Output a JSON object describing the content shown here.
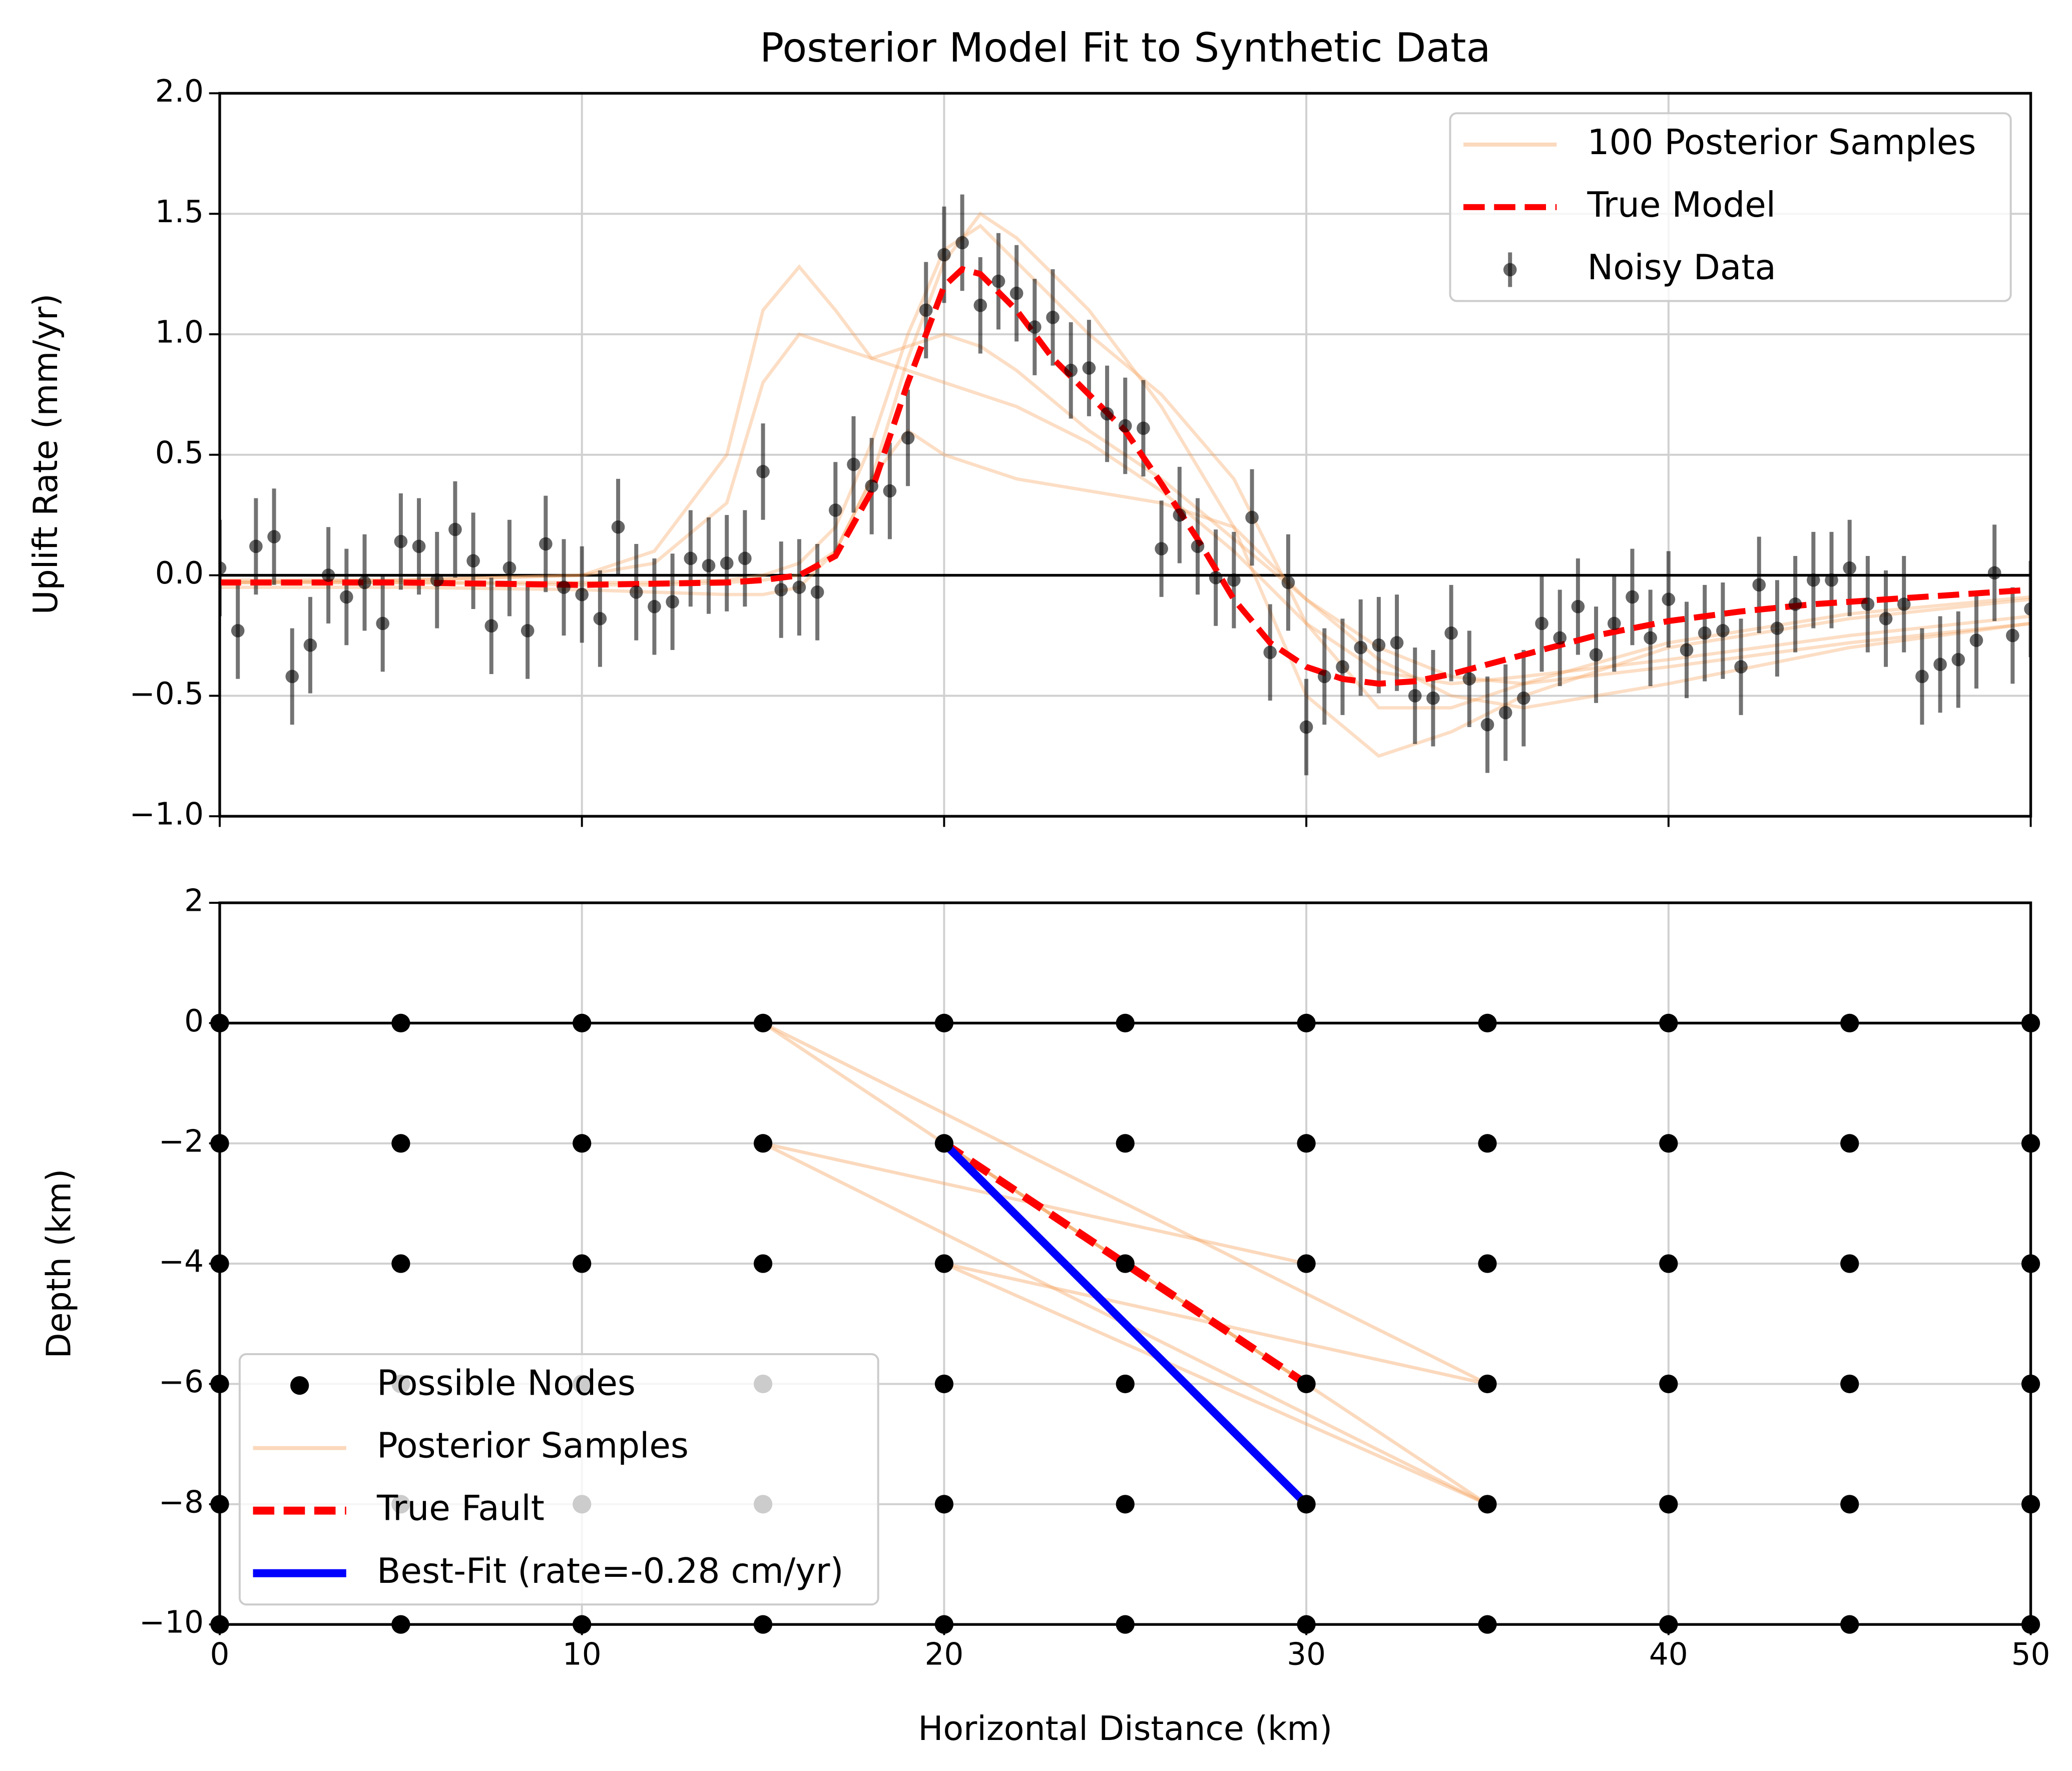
{
  "chart_data": [
    {
      "type": "line",
      "title": "Posterior Model Fit to Synthetic Data",
      "ylabel": "Uplift Rate (mm/yr)",
      "xlim": [
        0,
        50
      ],
      "ylim": [
        -1,
        2
      ],
      "xticks": [
        0,
        10,
        20,
        30,
        40,
        50
      ],
      "show_xtick_labels": false,
      "yticks": [
        {
          "value": -1,
          "label": "−1.0"
        },
        {
          "value": -0.5,
          "label": "−0.5"
        },
        {
          "value": 0,
          "label": "0.0"
        },
        0.5,
        {
          "value": 1,
          "label": "1.0"
        },
        1.5,
        {
          "value": 2,
          "label": "2.0"
        }
      ],
      "grid": true,
      "legend": "upper right",
      "posterior_samples": {
        "name": "100 Posterior Samples",
        "color": "#f5a05a",
        "x": [
          0,
          5,
          10,
          12,
          14,
          15,
          16,
          17,
          18,
          19,
          20,
          21,
          22,
          24,
          26,
          28,
          30,
          32,
          34,
          36,
          40,
          45,
          50
        ],
        "curves": [
          [
            -0.03,
            -0.02,
            0.0,
            0.1,
            0.5,
            1.1,
            1.28,
            1.1,
            0.9,
            0.85,
            0.8,
            0.75,
            0.7,
            0.55,
            0.35,
            0.1,
            -0.2,
            -0.4,
            -0.45,
            -0.42,
            -0.35,
            -0.25,
            -0.17
          ],
          [
            -0.03,
            -0.03,
            -0.04,
            -0.04,
            -0.03,
            -0.02,
            0.0,
            0.1,
            0.4,
            0.9,
            1.3,
            1.5,
            1.4,
            1.1,
            0.7,
            0.2,
            -0.5,
            -0.75,
            -0.65,
            -0.5,
            -0.3,
            -0.18,
            -0.1
          ],
          [
            -0.02,
            -0.02,
            0.0,
            0.05,
            0.3,
            0.8,
            1.0,
            0.95,
            0.9,
            0.95,
            1.0,
            0.95,
            0.85,
            0.6,
            0.4,
            0.15,
            -0.1,
            -0.3,
            -0.42,
            -0.45,
            -0.38,
            -0.28,
            -0.2
          ],
          [
            -0.05,
            -0.05,
            -0.06,
            -0.07,
            -0.08,
            -0.08,
            -0.05,
            0.1,
            0.4,
            0.6,
            0.5,
            0.45,
            0.4,
            0.35,
            0.3,
            0.2,
            -0.1,
            -0.35,
            -0.5,
            -0.55,
            -0.45,
            -0.3,
            -0.2
          ],
          [
            -0.03,
            -0.03,
            -0.03,
            -0.03,
            -0.02,
            0.0,
            0.05,
            0.2,
            0.55,
            1.0,
            1.35,
            1.45,
            1.3,
            1.0,
            0.75,
            0.4,
            -0.2,
            -0.55,
            -0.55,
            -0.45,
            -0.28,
            -0.16,
            -0.09
          ]
        ]
      },
      "true_model": {
        "name": "True Model",
        "color": "#ff0000",
        "x": [
          0,
          5,
          10,
          14,
          15,
          16,
          17,
          18,
          19,
          20,
          20.5,
          21,
          22,
          23,
          24,
          25,
          26,
          27,
          28,
          29,
          30,
          31,
          32,
          33,
          34,
          35,
          36,
          37,
          38,
          39,
          40,
          42,
          44,
          46,
          48,
          50
        ],
        "values": [
          -0.03,
          -0.03,
          -0.04,
          -0.03,
          -0.02,
          0.0,
          0.08,
          0.35,
          0.8,
          1.2,
          1.27,
          1.25,
          1.1,
          0.9,
          0.75,
          0.6,
          0.38,
          0.15,
          -0.1,
          -0.28,
          -0.38,
          -0.43,
          -0.45,
          -0.44,
          -0.41,
          -0.37,
          -0.33,
          -0.29,
          -0.25,
          -0.22,
          -0.19,
          -0.15,
          -0.12,
          -0.1,
          -0.08,
          -0.06
        ]
      },
      "data": {
        "name": "Noisy Data",
        "color": "#000000",
        "error": 0.2,
        "x": [
          0,
          0.5,
          1,
          1.5,
          2,
          2.5,
          3,
          3.5,
          4,
          4.5,
          5,
          5.5,
          6,
          6.5,
          7,
          7.5,
          8,
          8.5,
          9,
          9.5,
          10,
          10.5,
          11,
          11.5,
          12,
          12.5,
          13,
          13.5,
          14,
          14.5,
          15,
          15.5,
          16,
          16.5,
          17,
          17.5,
          18,
          18.5,
          19,
          19.5,
          20,
          20.5,
          21,
          21.5,
          22,
          22.5,
          23,
          23.5,
          24,
          24.5,
          25,
          25.5,
          26,
          26.5,
          27,
          27.5,
          28,
          28.5,
          29,
          29.5,
          30,
          30.5,
          31,
          31.5,
          32,
          32.5,
          33,
          33.5,
          34,
          34.5,
          35,
          35.5,
          36,
          36.5,
          37,
          37.5,
          38,
          38.5,
          39,
          39.5,
          40,
          40.5,
          41,
          41.5,
          42,
          42.5,
          43,
          43.5,
          44,
          44.5,
          45,
          45.5,
          46,
          46.5,
          47,
          47.5,
          48,
          48.5,
          49,
          49.5,
          50
        ],
        "values": [
          0.03,
          -0.23,
          0.12,
          0.16,
          -0.42,
          -0.29,
          0.0,
          -0.09,
          -0.03,
          -0.2,
          0.14,
          0.12,
          -0.02,
          0.19,
          0.06,
          -0.21,
          0.03,
          -0.23,
          0.13,
          -0.05,
          -0.08,
          -0.18,
          0.2,
          -0.07,
          -0.13,
          -0.11,
          0.07,
          0.04,
          0.05,
          0.07,
          0.43,
          -0.06,
          -0.05,
          -0.07,
          0.27,
          0.46,
          0.37,
          0.35,
          0.57,
          1.1,
          1.33,
          1.38,
          1.12,
          1.22,
          1.17,
          1.03,
          1.07,
          0.85,
          0.86,
          0.67,
          0.62,
          0.61,
          0.11,
          0.25,
          0.12,
          -0.01,
          -0.02,
          0.24,
          -0.32,
          -0.03,
          -0.63,
          -0.42,
          -0.38,
          -0.3,
          -0.29,
          -0.28,
          -0.5,
          -0.51,
          -0.24,
          -0.43,
          -0.62,
          -0.57,
          -0.51,
          -0.2,
          -0.26,
          -0.13,
          -0.33,
          -0.2,
          -0.09,
          -0.26,
          -0.1,
          -0.31,
          -0.24,
          -0.23,
          -0.38,
          -0.04,
          -0.22,
          -0.12,
          -0.02,
          -0.02,
          0.03,
          -0.12,
          -0.18,
          -0.12,
          -0.42,
          -0.37,
          -0.35,
          -0.27,
          0.01,
          -0.25,
          -0.14
        ]
      }
    },
    {
      "type": "scatter",
      "ylabel": "Depth (km)",
      "xlabel": "Horizontal Distance (km)",
      "xlim": [
        0,
        50
      ],
      "ylim": [
        -10,
        2
      ],
      "xticks": [
        0,
        10,
        20,
        30,
        40,
        50
      ],
      "show_xtick_labels": true,
      "yticks": [
        {
          "value": -10,
          "label": "−10"
        },
        {
          "value": -8,
          "label": "−8"
        },
        {
          "value": -6,
          "label": "−6"
        },
        {
          "value": -4,
          "label": "−4"
        },
        {
          "value": -2,
          "label": "−2"
        },
        0,
        2
      ],
      "grid": true,
      "legend": "lower left",
      "nodes": {
        "name": "Possible Nodes",
        "color": "#000000",
        "x": [
          0,
          5,
          10,
          15,
          20,
          25,
          30,
          35,
          40,
          45,
          50
        ],
        "depths": [
          0,
          -2,
          -4,
          -6,
          -8,
          -10
        ]
      },
      "posterior_samples": {
        "name": "Posterior Samples",
        "color": "#f5a05a",
        "faults": [
          {
            "x": [
              15,
              35
            ],
            "y": [
              0,
              -6
            ]
          },
          {
            "x": [
              15,
              35
            ],
            "y": [
              -2,
              -8
            ]
          },
          {
            "x": [
              15,
              30
            ],
            "y": [
              -2,
              -4
            ]
          },
          {
            "x": [
              20,
              35
            ],
            "y": [
              -2,
              -8
            ]
          },
          {
            "x": [
              20,
              35
            ],
            "y": [
              -4,
              -6
            ]
          },
          {
            "x": [
              20,
              35
            ],
            "y": [
              -4,
              -8
            ]
          },
          {
            "x": [
              15,
              30
            ],
            "y": [
              0,
              -6
            ]
          },
          {
            "x": [
              20,
              30
            ],
            "y": [
              -2,
              -6
            ]
          }
        ]
      },
      "true_fault": {
        "name": "True Fault",
        "color": "#ff0000",
        "x": [
          20,
          30
        ],
        "y": [
          -2,
          -6
        ]
      },
      "best_fit": {
        "name": "Best-Fit (rate=-0.28 cm/yr)",
        "color": "#0000ff",
        "x": [
          20,
          30
        ],
        "y": [
          -2,
          -8
        ]
      }
    }
  ]
}
